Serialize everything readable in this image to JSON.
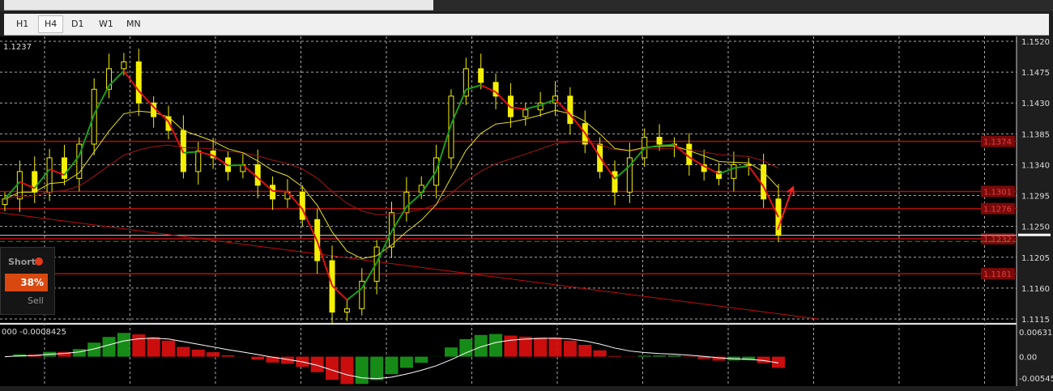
{
  "toolbar": {
    "timeframes": [
      "H1",
      "H4",
      "D1",
      "W1",
      "MN"
    ],
    "active": "H4"
  },
  "chart_data": {
    "type": "candlestick",
    "price_label": "1.1237",
    "y_ticks": [
      "1.1520",
      "1.1475",
      "1.1430",
      "1.1385",
      "1.1340",
      "1.1295",
      "1.1250",
      "1.1205",
      "1.1160",
      "1.1115"
    ],
    "ylim": [
      1.1115,
      1.152
    ],
    "grid": true,
    "closes": [
      1.129,
      1.133,
      1.13,
      1.135,
      1.132,
      1.137,
      1.145,
      1.148,
      1.149,
      1.143,
      1.141,
      1.139,
      1.133,
      1.136,
      1.135,
      1.133,
      1.134,
      1.131,
      1.129,
      1.13,
      1.126,
      1.12,
      1.1125,
      1.113,
      1.117,
      1.122,
      1.127,
      1.13,
      1.131,
      1.135,
      1.144,
      1.148,
      1.146,
      1.144,
      1.141,
      1.142,
      1.143,
      1.144,
      1.14,
      1.137,
      1.133,
      1.13,
      1.135,
      1.138,
      1.137,
      1.137,
      1.134,
      1.133,
      1.132,
      1.134,
      1.134,
      1.129,
      1.1237
    ],
    "horizontal_levels": [
      {
        "value": 1.1374,
        "label": "1.1374",
        "color": "#b01010"
      },
      {
        "value": 1.1301,
        "label": "1.1301",
        "color": "#b01010"
      },
      {
        "value": 1.1276,
        "label": "1.1276",
        "color": "#b01010"
      },
      {
        "value": 1.1232,
        "label": "1.1232",
        "color": "#b01010"
      },
      {
        "value": 1.1181,
        "label": "1.1181",
        "color": "#b01010"
      }
    ],
    "current_price_line": 1.1237,
    "dashed_level": 1.1228,
    "trendline": [
      1.127,
      1.1115
    ],
    "indicator": {
      "label": "000 -0.0008425",
      "ticks": [
        "0.00631",
        "0.00",
        "-0.00545"
      ],
      "ylim": [
        -0.00545,
        0.00631
      ]
    },
    "colors": {
      "bull": "#f5f000",
      "bear": "#f5f000",
      "ma_fast_up": "#1aa01a",
      "ma_fast_down": "#e01010",
      "ma_mid": "#e8e020",
      "ma_slow": "#a01818",
      "hist_up": "#1a9a1a",
      "hist_down": "#e01010",
      "signal": "#ffffff"
    }
  },
  "signal_panel": {
    "direction": "Short",
    "percent": "38%",
    "action": "Sell"
  }
}
